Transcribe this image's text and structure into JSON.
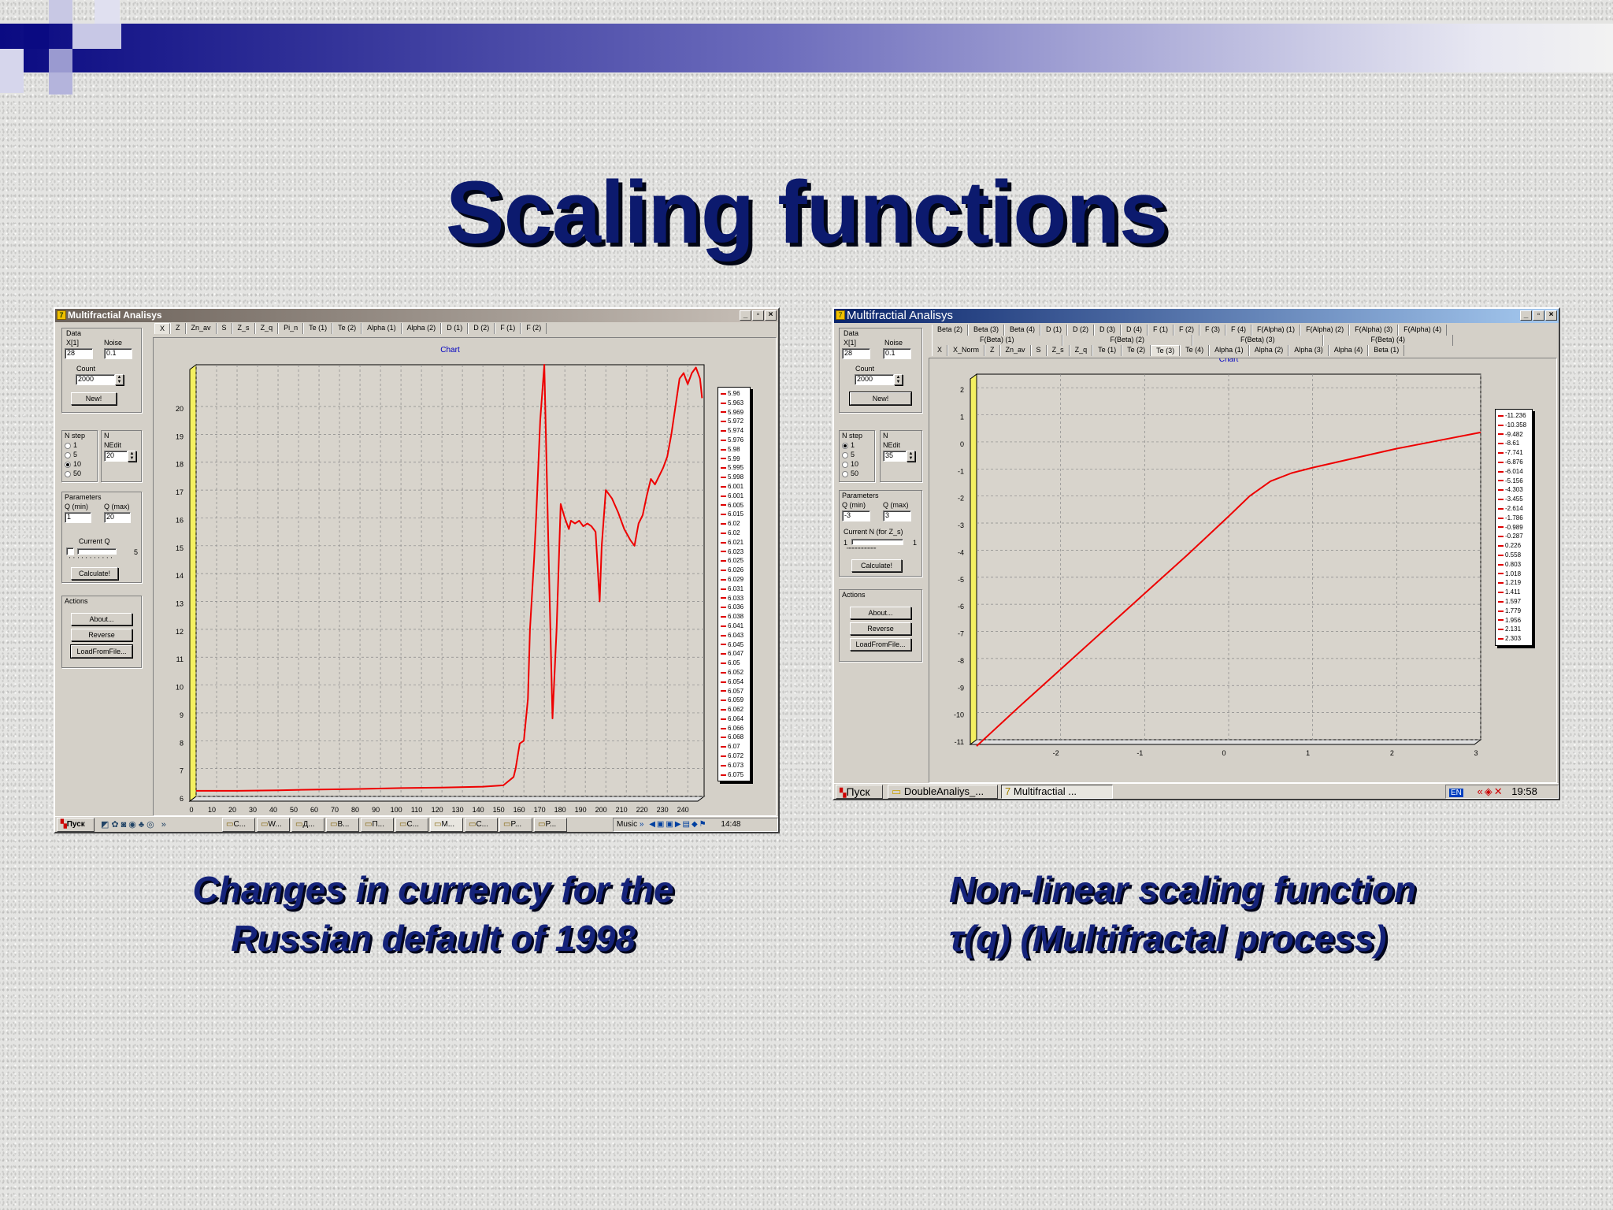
{
  "slide": {
    "title": "Scaling functions",
    "caption_left": [
      "Changes in currency for the",
      "Russian default of 1998"
    ],
    "caption_right": [
      "Non-linear scaling function",
      "τ(q) (Multifractal process)"
    ]
  },
  "win1": {
    "title": "Multifractial Analisys",
    "tabs": [
      "X",
      "Z",
      "Zn_av",
      "S",
      "Z_s",
      "Z_q",
      "Pi_n",
      "Te (1)",
      "Te (2)",
      "Alpha (1)",
      "Alpha (2)",
      "D (1)",
      "D (2)",
      "F (1)",
      "F (2)"
    ],
    "data": {
      "group": "Data",
      "x_label": "X[1]",
      "noise_label": "Noise",
      "x": "28",
      "noise": "0.1",
      "count_label": "Count",
      "count": "2000",
      "new": "New!"
    },
    "nstep": {
      "group": "N step",
      "options": [
        "1",
        "5",
        "10",
        "50"
      ],
      "selected": "10",
      "n_label": "N",
      "nedit_label": "NEdit",
      "nedit": "20"
    },
    "params": {
      "group": "Parameters",
      "qmin_label": "Q (min)",
      "qmax_label": "Q (max)",
      "qmin": "1",
      "qmax": "20",
      "current_label": "Current Q",
      "current_max": "5",
      "calc": "Calculate!"
    },
    "actions": {
      "group": "Actions",
      "about": "About...",
      "reverse": "Reverse",
      "load": "LoadFromFile..."
    },
    "taskbar": {
      "start": "Пуск",
      "items": [
        "C...",
        "W...",
        "Д...",
        "B...",
        "П...",
        "C...",
        "M...",
        "C...",
        "P...",
        "P..."
      ],
      "tray_label": "Music",
      "time": "14:48"
    }
  },
  "win2": {
    "title": "Multifractial Analisys",
    "tabs_row1": [
      "Beta (2)",
      "Beta (3)",
      "Beta (4)",
      "D (1)",
      "D (2)",
      "D (3)",
      "D (4)",
      "F (1)",
      "F (2)",
      "F (3)",
      "F (4)",
      "F(Alpha) (1)",
      "F(Alpha) (2)",
      "F(Alpha) (3)",
      "F(Alpha) (4)"
    ],
    "tabs_row2": [
      "F(Beta) (1)",
      "F(Beta) (2)",
      "F(Beta) (3)",
      "F(Beta) (4)"
    ],
    "tabs_row3": [
      "X",
      "X_Norm",
      "Z",
      "Zn_av",
      "S",
      "Z_s",
      "Z_q",
      "Te (1)",
      "Te (2)",
      "Te (3)",
      "Te (4)",
      "Alpha (1)",
      "Alpha (2)",
      "Alpha (3)",
      "Alpha (4)",
      "Beta (1)"
    ],
    "data": {
      "group": "Data",
      "x_label": "X[1]",
      "noise_label": "Noise",
      "x": "28",
      "noise": "0.1",
      "count_label": "Count",
      "count": "2000",
      "new": "New!"
    },
    "nstep": {
      "group": "N step",
      "options": [
        "1",
        "5",
        "10",
        "50"
      ],
      "selected": "1",
      "n_label": "N",
      "nedit_label": "NEdit",
      "nedit": "35"
    },
    "params": {
      "group": "Parameters",
      "qmin_label": "Q (min)",
      "qmax_label": "Q (max)",
      "qmin": "-3",
      "qmax": "3",
      "current_label": "Current N (for Z_s)",
      "current_min": "1",
      "current_max": "1",
      "calc": "Calculate!"
    },
    "actions": {
      "group": "Actions",
      "about": "About...",
      "reverse": "Reverse",
      "load": "LoadFromFile..."
    },
    "taskbar": {
      "start": "Пуск",
      "items": [
        "DoubleAnaliys_...",
        "Multifractial ..."
      ],
      "lang": "EN",
      "time": "19:58"
    }
  },
  "chart_data": [
    {
      "type": "line",
      "title": "Chart",
      "line_color": "#ee0000",
      "xlim": [
        0,
        248
      ],
      "ylim": [
        6,
        21.5
      ],
      "xticks": [
        0,
        10,
        20,
        30,
        40,
        50,
        60,
        70,
        80,
        90,
        100,
        110,
        120,
        130,
        140,
        150,
        160,
        170,
        180,
        190,
        200,
        210,
        220,
        230,
        240
      ],
      "yticks": [
        6,
        7,
        8,
        9,
        10,
        11,
        12,
        13,
        14,
        15,
        16,
        17,
        18,
        19,
        20
      ],
      "x": [
        0,
        20,
        40,
        60,
        80,
        100,
        120,
        140,
        150,
        155,
        156,
        158,
        160,
        162,
        163,
        165,
        166,
        168,
        170,
        172,
        174,
        176,
        178,
        180,
        182,
        183,
        185,
        187,
        189,
        191,
        193,
        195,
        197,
        198,
        200,
        203,
        206,
        209,
        212,
        214,
        216,
        218,
        220,
        222,
        224,
        226,
        228,
        230,
        232,
        234,
        236,
        238,
        240,
        242,
        244,
        246,
        247
      ],
      "y": [
        6.2,
        6.2,
        6.22,
        6.25,
        6.27,
        6.3,
        6.32,
        6.35,
        6.4,
        6.7,
        7.0,
        7.9,
        8.0,
        9.5,
        12.0,
        14.5,
        16.0,
        19.5,
        21.5,
        15.0,
        8.8,
        12.0,
        16.5,
        16.0,
        15.6,
        15.9,
        15.8,
        15.9,
        15.7,
        15.8,
        15.7,
        15.5,
        13.0,
        15.0,
        17.0,
        16.7,
        16.2,
        15.6,
        15.2,
        15.0,
        15.8,
        16.1,
        16.8,
        17.4,
        17.2,
        17.5,
        17.8,
        18.2,
        19.0,
        20.0,
        21.0,
        21.2,
        20.8,
        21.2,
        21.4,
        21.0,
        20.3
      ],
      "legend": [
        "5.96",
        "5.963",
        "5.969",
        "5.972",
        "5.974",
        "5.976",
        "5.98",
        "5.99",
        "5.995",
        "5.998",
        "6.001",
        "6.001",
        "6.005",
        "6.015",
        "6.02",
        "6.02",
        "6.021",
        "6.023",
        "6.025",
        "6.026",
        "6.029",
        "6.031",
        "6.033",
        "6.036",
        "6.038",
        "6.041",
        "6.043",
        "6.045",
        "6.047",
        "6.05",
        "6.052",
        "6.054",
        "6.057",
        "6.059",
        "6.062",
        "6.064",
        "6.066",
        "6.068",
        "6.07",
        "6.072",
        "6.073",
        "6.075"
      ]
    },
    {
      "type": "line",
      "title": "Chart",
      "line_color": "#ee0000",
      "xlim": [
        -3,
        3
      ],
      "ylim": [
        -11,
        2.5
      ],
      "xticks": [
        -2,
        -1,
        0,
        1,
        2,
        3
      ],
      "yticks": [
        2,
        1,
        0,
        -1,
        -2,
        -3,
        -4,
        -5,
        -6,
        -7,
        -8,
        -9,
        -10,
        -11
      ],
      "x": [
        -3,
        -2.5,
        -2,
        -1.5,
        -1,
        -0.5,
        0,
        0.25,
        0.5,
        0.75,
        1,
        1.5,
        2,
        2.5,
        3
      ],
      "y": [
        -11.236,
        -9.8,
        -8.4,
        -7.0,
        -5.6,
        -4.2,
        -2.75,
        -2.0,
        -1.45,
        -1.15,
        -0.95,
        -0.6,
        -0.25,
        0.05,
        0.35
      ],
      "legend": [
        "-11.236",
        "-10.358",
        "-9.482",
        "-8.61",
        "-7.741",
        "-6.876",
        "-6.014",
        "-5.156",
        "-4.303",
        "-3.455",
        "-2.614",
        "-1.786",
        "-0.989",
        "-0.287",
        "0.226",
        "0.558",
        "0.803",
        "1.018",
        "1.219",
        "1.411",
        "1.597",
        "1.779",
        "1.956",
        "2.131",
        "2.303"
      ]
    }
  ]
}
